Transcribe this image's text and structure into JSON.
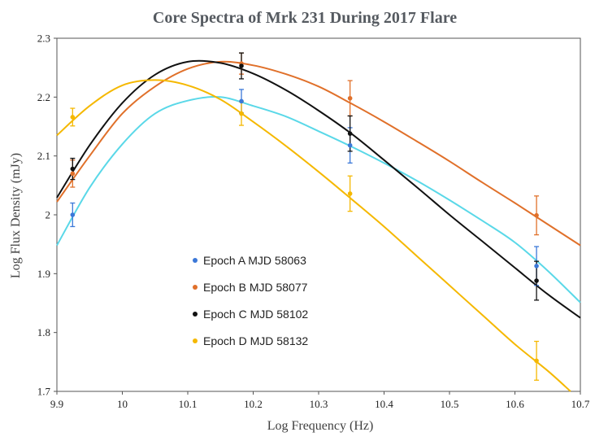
{
  "chart_data": {
    "type": "scatter",
    "title": "Core Spectra of  Mrk 231 During 2017 Flare",
    "xlabel": "Log Frequency (Hz)",
    "ylabel": "Log Flux Density (mJy)",
    "xlim": [
      9.9,
      10.7
    ],
    "ylim": [
      1.7,
      2.3
    ],
    "xticks": [
      "9.9",
      "10",
      "10.1",
      "10.2",
      "10.3",
      "10.4",
      "10.5",
      "10.6",
      "10.7"
    ],
    "yticks": [
      "1.7",
      "1.8",
      "1.9",
      "2",
      "2.1",
      "2.2",
      "2.3"
    ],
    "grid": false,
    "legend_position": "center-left",
    "series": [
      {
        "name": "Epoch A MJD 58063",
        "color": "#3b78d8",
        "curve_color": "#5ad8e8",
        "points": [
          {
            "x": 9.924,
            "y": 2.0,
            "err": 0.02
          },
          {
            "x": 10.182,
            "y": 2.193,
            "err": 0.02
          },
          {
            "x": 10.348,
            "y": 2.118,
            "err": 0.03
          },
          {
            "x": 10.633,
            "y": 1.913,
            "err": 0.033
          }
        ],
        "fit": [
          [
            9.9,
            1.948
          ],
          [
            9.95,
            2.046
          ],
          [
            10.0,
            2.12
          ],
          [
            10.05,
            2.172
          ],
          [
            10.1,
            2.194
          ],
          [
            10.15,
            2.2
          ],
          [
            10.2,
            2.185
          ],
          [
            10.25,
            2.167
          ],
          [
            10.3,
            2.142
          ],
          [
            10.35,
            2.116
          ],
          [
            10.4,
            2.088
          ],
          [
            10.45,
            2.058
          ],
          [
            10.5,
            2.025
          ],
          [
            10.55,
            1.99
          ],
          [
            10.6,
            1.953
          ],
          [
            10.65,
            1.905
          ],
          [
            10.7,
            1.851
          ]
        ]
      },
      {
        "name": "Epoch B MJD 58077",
        "color": "#e0702a",
        "curve_color": "#e0702a",
        "points": [
          {
            "x": 9.924,
            "y": 2.07,
            "err": 0.023
          },
          {
            "x": 10.182,
            "y": 2.257,
            "err": 0.018
          },
          {
            "x": 10.348,
            "y": 2.198,
            "err": 0.03
          },
          {
            "x": 10.633,
            "y": 1.999,
            "err": 0.033
          }
        ],
        "fit": [
          [
            9.9,
            2.022
          ],
          [
            9.95,
            2.1
          ],
          [
            10.0,
            2.172
          ],
          [
            10.05,
            2.218
          ],
          [
            10.1,
            2.248
          ],
          [
            10.15,
            2.26
          ],
          [
            10.2,
            2.254
          ],
          [
            10.25,
            2.239
          ],
          [
            10.3,
            2.218
          ],
          [
            10.35,
            2.189
          ],
          [
            10.4,
            2.158
          ],
          [
            10.45,
            2.125
          ],
          [
            10.5,
            2.091
          ],
          [
            10.55,
            2.055
          ],
          [
            10.6,
            2.02
          ],
          [
            10.65,
            1.984
          ],
          [
            10.7,
            1.948
          ]
        ]
      },
      {
        "name": "Epoch C MJD 58102",
        "color": "#111111",
        "curve_color": "#111111",
        "points": [
          {
            "x": 9.924,
            "y": 2.078,
            "err": 0.018
          },
          {
            "x": 10.182,
            "y": 2.253,
            "err": 0.022
          },
          {
            "x": 10.348,
            "y": 2.138,
            "err": 0.03
          },
          {
            "x": 10.633,
            "y": 1.888,
            "err": 0.033
          }
        ],
        "fit": [
          [
            9.9,
            2.029
          ],
          [
            9.95,
            2.118
          ],
          [
            10.0,
            2.19
          ],
          [
            10.05,
            2.238
          ],
          [
            10.1,
            2.26
          ],
          [
            10.15,
            2.258
          ],
          [
            10.2,
            2.24
          ],
          [
            10.25,
            2.212
          ],
          [
            10.3,
            2.177
          ],
          [
            10.35,
            2.138
          ],
          [
            10.4,
            2.093
          ],
          [
            10.45,
            2.047
          ],
          [
            10.5,
            2.0
          ],
          [
            10.55,
            1.955
          ],
          [
            10.6,
            1.91
          ],
          [
            10.65,
            1.865
          ],
          [
            10.7,
            1.825
          ]
        ]
      },
      {
        "name": "Epoch D MJD 58132",
        "color": "#f5b800",
        "curve_color": "#f5b800",
        "points": [
          {
            "x": 9.924,
            "y": 2.166,
            "err": 0.015
          },
          {
            "x": 10.182,
            "y": 2.172,
            "err": 0.02
          },
          {
            "x": 10.348,
            "y": 2.036,
            "err": 0.03
          },
          {
            "x": 10.633,
            "y": 1.752,
            "err": 0.033
          }
        ],
        "fit": [
          [
            9.9,
            2.135
          ],
          [
            9.95,
            2.185
          ],
          [
            10.0,
            2.22
          ],
          [
            10.05,
            2.229
          ],
          [
            10.1,
            2.22
          ],
          [
            10.15,
            2.196
          ],
          [
            10.2,
            2.158
          ],
          [
            10.25,
            2.117
          ],
          [
            10.3,
            2.073
          ],
          [
            10.35,
            2.027
          ],
          [
            10.4,
            1.98
          ],
          [
            10.45,
            1.93
          ],
          [
            10.5,
            1.88
          ],
          [
            10.55,
            1.83
          ],
          [
            10.6,
            1.78
          ],
          [
            10.65,
            1.735
          ],
          [
            10.685,
            1.7
          ]
        ]
      }
    ]
  }
}
